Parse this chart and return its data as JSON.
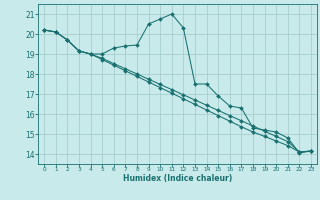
{
  "xlabel": "Humidex (Indice chaleur)",
  "background_color": "#c8eaea",
  "grid_color": "#a0c8c8",
  "line_color": "#1a7070",
  "xlim": [
    -0.5,
    23.5
  ],
  "ylim": [
    13.5,
    21.5
  ],
  "xticks": [
    0,
    1,
    2,
    3,
    4,
    5,
    6,
    7,
    8,
    9,
    10,
    11,
    12,
    13,
    14,
    15,
    16,
    17,
    18,
    19,
    20,
    21,
    22,
    23
  ],
  "yticks": [
    14,
    15,
    16,
    17,
    18,
    19,
    20,
    21
  ],
  "series1_x": [
    0,
    1,
    2,
    3,
    4,
    5,
    6,
    7,
    8,
    9,
    10,
    11,
    12,
    13,
    14,
    15,
    16,
    17,
    18,
    19,
    20,
    21,
    22,
    23
  ],
  "series1_y": [
    20.2,
    20.1,
    19.7,
    19.15,
    19.0,
    19.0,
    19.3,
    19.4,
    19.45,
    20.5,
    20.75,
    21.0,
    20.3,
    17.5,
    17.5,
    16.9,
    16.4,
    16.3,
    15.3,
    15.2,
    15.1,
    14.8,
    14.05,
    14.15
  ],
  "series2_x": [
    0,
    1,
    2,
    3,
    4,
    5,
    6,
    7,
    8,
    9,
    10,
    11,
    12,
    13,
    14,
    15,
    16,
    17,
    18,
    19,
    20,
    21,
    22,
    23
  ],
  "series2_y": [
    20.2,
    20.1,
    19.7,
    19.15,
    19.0,
    18.78,
    18.52,
    18.26,
    18.0,
    17.74,
    17.48,
    17.22,
    16.96,
    16.7,
    16.44,
    16.18,
    15.92,
    15.66,
    15.4,
    15.14,
    14.88,
    14.62,
    14.1,
    14.15
  ],
  "series3_x": [
    0,
    1,
    2,
    3,
    4,
    5,
    6,
    7,
    8,
    9,
    10,
    11,
    12,
    13,
    14,
    15,
    16,
    17,
    18,
    19,
    20,
    21,
    22,
    23
  ],
  "series3_y": [
    20.2,
    20.1,
    19.7,
    19.15,
    19.0,
    18.72,
    18.44,
    18.16,
    17.88,
    17.6,
    17.32,
    17.04,
    16.76,
    16.48,
    16.2,
    15.92,
    15.64,
    15.36,
    15.1,
    14.88,
    14.65,
    14.42,
    14.1,
    14.15
  ]
}
